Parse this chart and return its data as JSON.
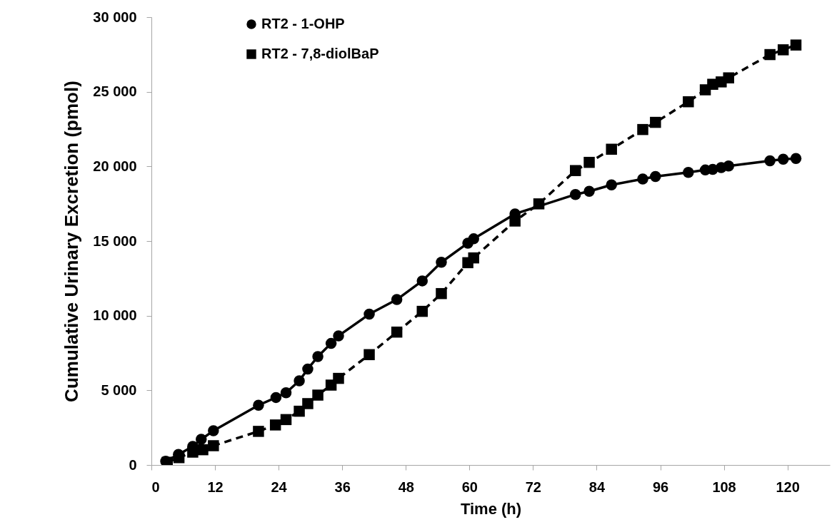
{
  "chart_data": {
    "type": "line",
    "xlabel": "Time (h)",
    "ylabel": "Cumulative Urinary Excretion (pmol)",
    "xlim": [
      0,
      128
    ],
    "xticks": [
      0,
      12,
      24,
      36,
      48,
      60,
      72,
      84,
      96,
      108,
      120
    ],
    "ylim": [
      0,
      30000
    ],
    "yticks": [
      {
        "value": 0,
        "label": "0"
      },
      {
        "value": 5000,
        "label": "5 000"
      },
      {
        "value": 10000,
        "label": "10 000"
      },
      {
        "value": 15000,
        "label": "15 000"
      },
      {
        "value": 20000,
        "label": "20 000"
      },
      {
        "value": 25000,
        "label": "25 000"
      },
      {
        "value": 30000,
        "label": "30 000"
      }
    ],
    "grid": false,
    "legend": "top left",
    "series": [
      {
        "name": "RT2 - 1-OHP",
        "color": "#000000",
        "marker": "circle",
        "line_style": "solid",
        "x": [
          2.7,
          5.1,
          7.8,
          9.4,
          11.7,
          20.2,
          23.5,
          25.4,
          27.9,
          29.5,
          31.4,
          33.9,
          35.3,
          41.1,
          46.3,
          51.1,
          54.7,
          59.7,
          60.8,
          68.6,
          80.0,
          82.6,
          86.8,
          92.7,
          95.1,
          101.3,
          104.5,
          105.9,
          107.5,
          108.9,
          116.7,
          119.2,
          121.6
        ],
        "values": [
          250,
          700,
          1240,
          1720,
          2290,
          4000,
          4520,
          4840,
          5640,
          6430,
          7260,
          8140,
          8650,
          10100,
          11080,
          12330,
          13580,
          14860,
          15150,
          16820,
          18120,
          18330,
          18760,
          19160,
          19320,
          19600,
          19760,
          19800,
          19920,
          20030,
          20370,
          20480,
          20530
        ]
      },
      {
        "name": "RT2 - 7,8-diolBaP",
        "color": "#000000",
        "marker": "square",
        "line_style": "dashed",
        "x": [
          3.0,
          5.2,
          7.8,
          9.7,
          11.7,
          20.2,
          23.4,
          25.4,
          27.9,
          29.5,
          31.4,
          33.9,
          35.3,
          41.1,
          46.3,
          51.1,
          54.7,
          59.7,
          60.8,
          68.6,
          73.1,
          80.0,
          82.6,
          86.8,
          92.7,
          95.1,
          101.3,
          104.5,
          105.9,
          107.5,
          108.9,
          116.7,
          119.2,
          121.6
        ],
        "values": [
          180,
          490,
          860,
          1020,
          1290,
          2250,
          2680,
          3040,
          3600,
          4110,
          4680,
          5350,
          5800,
          7390,
          8900,
          10290,
          11480,
          13550,
          13870,
          16340,
          17490,
          19720,
          20270,
          21150,
          22470,
          22950,
          24330,
          25130,
          25500,
          25660,
          25930,
          27490,
          27810,
          28130
        ]
      }
    ]
  }
}
